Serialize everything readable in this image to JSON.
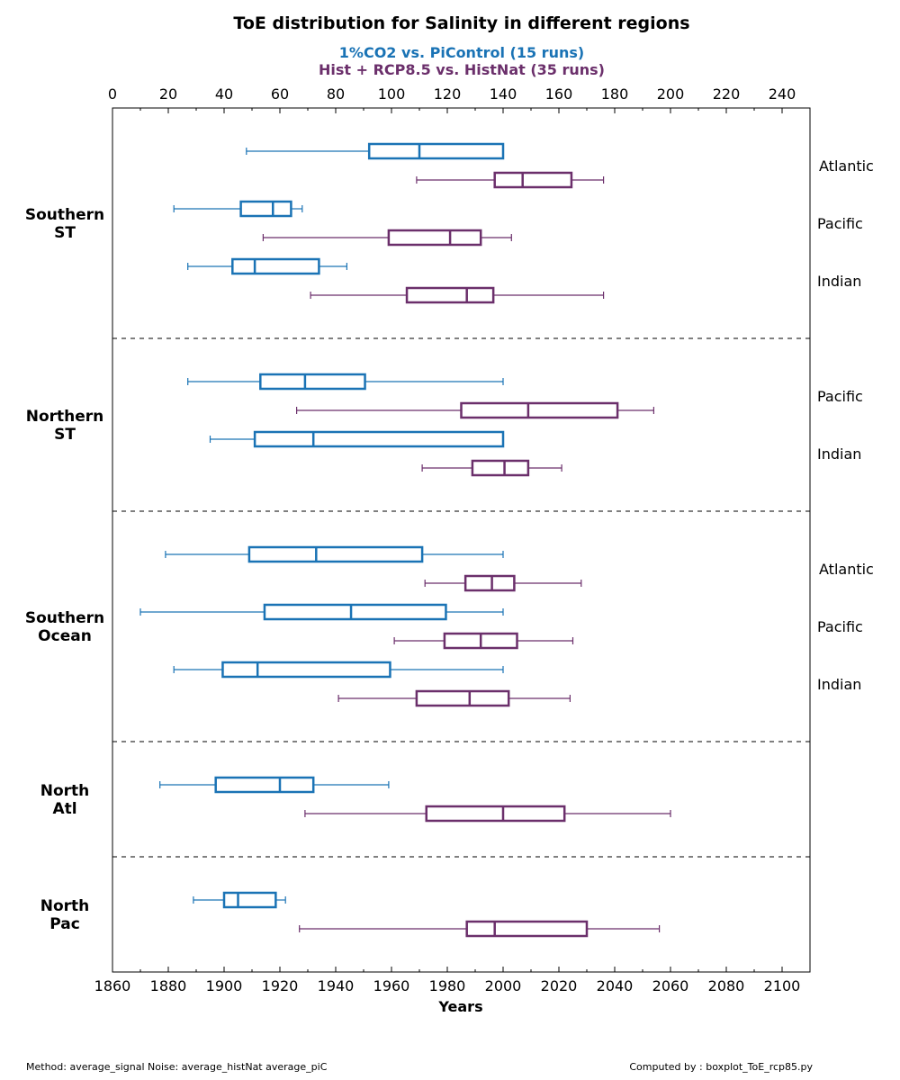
{
  "chart_data": {
    "type": "boxplot",
    "title": "ToE distribution for Salinity in different regions",
    "subtitles": [
      {
        "text": "1%CO2 vs. PiControl (15 runs)",
        "color": "#1a73b5"
      },
      {
        "text": "Hist + RCP8.5 vs. HistNat (35 runs)",
        "color": "#6b2f6b"
      }
    ],
    "xlabel": "Years",
    "x_bottom": {
      "min": 1860,
      "max": 2110,
      "ticks": [
        1860,
        1880,
        1900,
        1920,
        1940,
        1960,
        1980,
        2000,
        2020,
        2040,
        2060,
        2080,
        2100
      ]
    },
    "x_top": {
      "min": 0,
      "max": 250,
      "ticks": [
        0,
        20,
        40,
        60,
        80,
        100,
        120,
        140,
        160,
        180,
        200,
        220,
        240
      ]
    },
    "colors": {
      "piControl": "#1a73b5",
      "histNat": "#6b2f6b",
      "axis": "#000000"
    },
    "regions": [
      {
        "label": "Southern\nST",
        "rows": 8
      },
      {
        "label": "Northern\nST",
        "rows": 6
      },
      {
        "label": "Southern\nOcean",
        "rows": 8
      },
      {
        "label": "North\nAtl",
        "rows": 4
      },
      {
        "label": "North\nPac",
        "rows": 4
      }
    ],
    "basins": [
      {
        "label": "Atlantic",
        "row": 2
      },
      {
        "label": "Pacific",
        "row": 4
      },
      {
        "label": "Indian",
        "row": 6
      },
      {
        "label": "Pacific",
        "row": 10
      },
      {
        "label": "Indian",
        "row": 12
      },
      {
        "label": "Atlantic",
        "row": 16
      },
      {
        "label": "Pacific",
        "row": 18
      },
      {
        "label": "Indian",
        "row": 20
      }
    ],
    "boxes": [
      {
        "region": "Southern ST",
        "basin": "Atlantic",
        "experiment": "1%CO2",
        "row": 1,
        "min": 1908,
        "q1": 1952,
        "median": 1970,
        "q3": 2000,
        "max": 2000
      },
      {
        "region": "Southern ST",
        "basin": "Atlantic",
        "experiment": "Hist + RCP8.5",
        "row": 2,
        "min": 1969,
        "q1": 1997,
        "median": 2007,
        "q3": 2024.5,
        "max": 2036
      },
      {
        "region": "Southern ST",
        "basin": "Pacific",
        "experiment": "1%CO2",
        "row": 3,
        "min": 1882,
        "q1": 1906,
        "median": 1917.5,
        "q3": 1924,
        "max": 1928
      },
      {
        "region": "Southern ST",
        "basin": "Pacific",
        "experiment": "Hist + RCP8.5",
        "row": 4,
        "min": 1914,
        "q1": 1959,
        "median": 1981,
        "q3": 1992,
        "max": 2003
      },
      {
        "region": "Southern ST",
        "basin": "Indian",
        "experiment": "1%CO2",
        "row": 5,
        "min": 1887,
        "q1": 1903,
        "median": 1911,
        "q3": 1934,
        "max": 1944
      },
      {
        "region": "Southern ST",
        "basin": "Indian",
        "experiment": "Hist + RCP8.5",
        "row": 6,
        "min": 1931,
        "q1": 1965.5,
        "median": 1987,
        "q3": 1996.5,
        "max": 2036
      },
      {
        "region": "Northern ST",
        "basin": "Pacific",
        "experiment": "1%CO2",
        "row": 9,
        "min": 1887,
        "q1": 1913,
        "median": 1929,
        "q3": 1950.5,
        "max": 2000
      },
      {
        "region": "Northern ST",
        "basin": "Pacific",
        "experiment": "Hist + RCP8.5",
        "row": 10,
        "min": 1926,
        "q1": 1985,
        "median": 2009,
        "q3": 2041,
        "max": 2054
      },
      {
        "region": "Northern ST",
        "basin": "Indian",
        "experiment": "1%CO2",
        "row": 11,
        "min": 1895,
        "q1": 1911,
        "median": 1932,
        "q3": 2000,
        "max": 2000
      },
      {
        "region": "Northern ST",
        "basin": "Indian",
        "experiment": "Hist + RCP8.5",
        "row": 12,
        "min": 1971,
        "q1": 1989,
        "median": 2000.5,
        "q3": 2009,
        "max": 2021
      },
      {
        "region": "Southern Ocean",
        "basin": "Atlantic",
        "experiment": "1%CO2",
        "row": 15,
        "min": 1879,
        "q1": 1909,
        "median": 1933,
        "q3": 1971,
        "max": 2000
      },
      {
        "region": "Southern Ocean",
        "basin": "Atlantic",
        "experiment": "Hist + RCP8.5",
        "row": 16,
        "min": 1972,
        "q1": 1986.5,
        "median": 1996,
        "q3": 2004,
        "max": 2028
      },
      {
        "region": "Southern Ocean",
        "basin": "Pacific",
        "experiment": "1%CO2",
        "row": 17,
        "min": 1870,
        "q1": 1914.5,
        "median": 1945.5,
        "q3": 1979.5,
        "max": 2000
      },
      {
        "region": "Southern Ocean",
        "basin": "Pacific",
        "experiment": "Hist + RCP8.5",
        "row": 18,
        "min": 1961,
        "q1": 1979,
        "median": 1992,
        "q3": 2005,
        "max": 2025
      },
      {
        "region": "Southern Ocean",
        "basin": "Indian",
        "experiment": "1%CO2",
        "row": 19,
        "min": 1882,
        "q1": 1899.5,
        "median": 1912,
        "q3": 1959.5,
        "max": 2000
      },
      {
        "region": "Southern Ocean",
        "basin": "Indian",
        "experiment": "Hist + RCP8.5",
        "row": 20,
        "min": 1941,
        "q1": 1969,
        "median": 1988,
        "q3": 2002,
        "max": 2024
      },
      {
        "region": "North Atl",
        "basin": "",
        "experiment": "1%CO2",
        "row": 23,
        "min": 1877,
        "q1": 1897,
        "median": 1920,
        "q3": 1932,
        "max": 1959
      },
      {
        "region": "North Atl",
        "basin": "",
        "experiment": "Hist + RCP8.5",
        "row": 24,
        "min": 1929,
        "q1": 1972.5,
        "median": 2000,
        "q3": 2022,
        "max": 2060
      },
      {
        "region": "North Pac",
        "basin": "",
        "experiment": "1%CO2",
        "row": 27,
        "min": 1889,
        "q1": 1900,
        "median": 1905,
        "q3": 1918.5,
        "max": 1922
      },
      {
        "region": "North Pac",
        "basin": "",
        "experiment": "Hist + RCP8.5",
        "row": 28,
        "min": 1927,
        "q1": 1987,
        "median": 1997,
        "q3": 2030,
        "max": 2056
      }
    ],
    "separators_after_rows": [
      7.5,
      13.5,
      21.5,
      25.5
    ],
    "total_rows": 29.5
  },
  "footer": {
    "left": "Method: average_signal  Noise: average_histNat average_piC",
    "right": "Computed by : boxplot_ToE_rcp85.py"
  }
}
